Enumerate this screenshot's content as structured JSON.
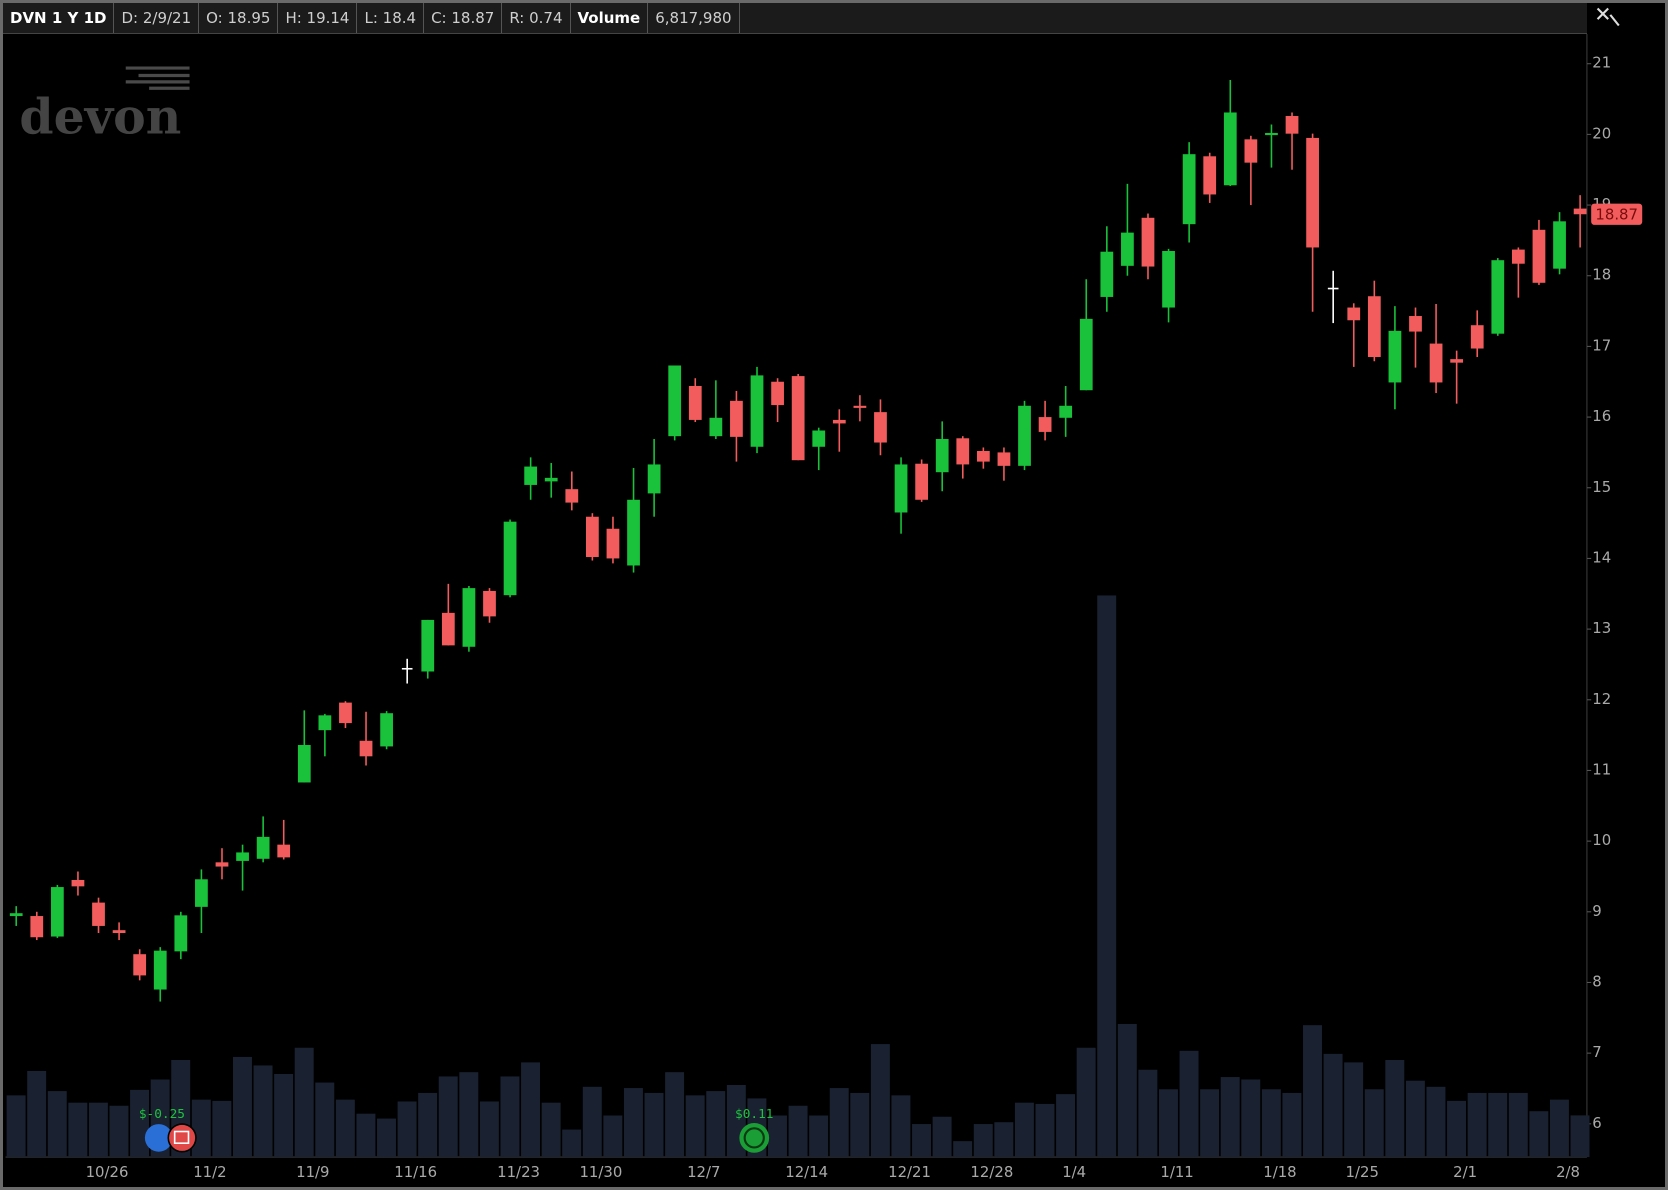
{
  "header": {
    "items": [
      "DVN 1 Y 1D",
      "D: 2/9/21",
      "O: 18.95",
      "H: 19.14",
      "L: 18.4",
      "C: 18.87",
      "R: 0.74",
      "Volume",
      "6,817,980"
    ]
  },
  "logo": "devon",
  "chart_data": {
    "type": "candlestick",
    "categories": [
      null,
      null,
      null,
      null,
      "10/26",
      null,
      null,
      null,
      null,
      "11/2",
      null,
      null,
      null,
      null,
      "11/9",
      null,
      null,
      null,
      null,
      "11/16",
      null,
      null,
      null,
      null,
      "11/23",
      null,
      null,
      null,
      "11/30",
      null,
      null,
      null,
      null,
      "12/7",
      null,
      null,
      null,
      null,
      "12/14",
      null,
      null,
      null,
      null,
      "12/21",
      null,
      null,
      null,
      "12/28",
      null,
      null,
      null,
      "1/4",
      null,
      null,
      null,
      null,
      "1/11",
      null,
      null,
      null,
      null,
      "1/18",
      null,
      null,
      null,
      "1/25",
      null,
      null,
      null,
      null,
      "2/1",
      null,
      null,
      null,
      null,
      "2/8",
      null
    ],
    "open": [
      8.94,
      8.94,
      8.65,
      9.45,
      9.13,
      8.74,
      8.4,
      7.9,
      8.44,
      9.07,
      9.7,
      9.72,
      9.75,
      9.95,
      10.83,
      11.57,
      11.96,
      11.42,
      11.34,
      12.45,
      12.4,
      13.23,
      12.75,
      13.54,
      13.48,
      15.04,
      15.09,
      14.98,
      14.59,
      14.42,
      13.9,
      14.92,
      15.73,
      16.44,
      15.73,
      16.23,
      15.58,
      16.5,
      16.58,
      15.58,
      15.96,
      16.16,
      16.07,
      14.65,
      15.34,
      15.22,
      15.7,
      15.52,
      15.5,
      15.31,
      16.0,
      15.99,
      16.38,
      17.7,
      18.14,
      18.82,
      17.55,
      18.73,
      19.69,
      19.28,
      19.93,
      19.99,
      20.26,
      19.95,
      17.83,
      17.55,
      17.71,
      16.49,
      17.43,
      17.04,
      16.82,
      17.3,
      17.18,
      18.37,
      18.65,
      18.1,
      18.95
    ],
    "high": [
      9.08,
      9.0,
      9.38,
      9.57,
      9.2,
      8.85,
      8.47,
      8.5,
      9.0,
      9.6,
      9.9,
      9.95,
      10.35,
      10.3,
      11.85,
      11.8,
      11.98,
      11.83,
      11.84,
      12.58,
      13.13,
      13.64,
      13.61,
      13.58,
      14.55,
      15.43,
      15.35,
      15.23,
      14.64,
      14.59,
      15.28,
      15.69,
      16.73,
      16.55,
      16.52,
      16.37,
      16.71,
      16.55,
      16.61,
      15.85,
      16.11,
      16.31,
      16.25,
      15.43,
      15.4,
      15.94,
      15.73,
      15.57,
      15.57,
      16.23,
      16.23,
      16.44,
      17.95,
      18.7,
      19.3,
      18.88,
      18.38,
      19.89,
      19.74,
      20.77,
      19.98,
      20.14,
      20.31,
      20.01,
      18.07,
      17.61,
      17.93,
      17.57,
      17.55,
      17.6,
      16.94,
      17.51,
      18.25,
      18.4,
      18.79,
      18.9,
      19.14
    ],
    "low": [
      8.8,
      8.6,
      8.63,
      9.23,
      8.7,
      8.6,
      8.03,
      7.73,
      8.33,
      8.7,
      9.46,
      9.3,
      9.7,
      9.74,
      10.83,
      11.2,
      11.6,
      11.07,
      11.3,
      12.23,
      12.3,
      12.77,
      12.68,
      13.09,
      13.45,
      14.83,
      14.86,
      14.68,
      13.97,
      13.93,
      13.8,
      14.59,
      15.67,
      15.93,
      15.69,
      15.37,
      15.49,
      15.93,
      15.39,
      15.25,
      15.51,
      15.94,
      15.46,
      14.35,
      14.8,
      14.95,
      15.13,
      15.27,
      15.1,
      15.25,
      15.67,
      15.72,
      16.38,
      17.49,
      18.0,
      17.95,
      17.34,
      18.47,
      19.03,
      19.27,
      19.0,
      19.53,
      19.5,
      17.49,
      17.33,
      16.71,
      16.79,
      16.11,
      16.7,
      16.34,
      16.19,
      16.85,
      17.15,
      17.69,
      17.87,
      18.02,
      18.4
    ],
    "close": [
      8.98,
      8.64,
      9.35,
      9.36,
      8.8,
      8.7,
      8.1,
      8.45,
      8.95,
      9.46,
      9.64,
      9.84,
      10.06,
      9.77,
      11.36,
      11.78,
      11.67,
      11.2,
      11.81,
      12.45,
      13.13,
      12.77,
      13.58,
      13.18,
      14.52,
      15.3,
      15.14,
      14.79,
      14.02,
      14.0,
      14.83,
      15.33,
      16.73,
      15.96,
      15.99,
      15.72,
      16.59,
      16.17,
      15.39,
      15.81,
      15.91,
      16.13,
      15.64,
      15.33,
      14.83,
      15.69,
      15.33,
      15.37,
      15.31,
      16.16,
      15.79,
      16.16,
      17.39,
      18.34,
      18.61,
      18.13,
      18.35,
      19.72,
      19.15,
      20.31,
      19.6,
      20.02,
      20.01,
      18.4,
      17.83,
      17.37,
      16.85,
      17.22,
      17.21,
      16.49,
      16.77,
      16.97,
      18.22,
      18.17,
      17.9,
      18.77,
      18.87
    ],
    "volume": [
      10100000,
      14100000,
      10800000,
      8900000,
      8900000,
      8400000,
      11000000,
      12700000,
      15900000,
      9400000,
      9200000,
      16400000,
      15000000,
      13600000,
      17900000,
      12200000,
      9400000,
      7100000,
      6300000,
      9100000,
      10500000,
      13200000,
      13900000,
      9100000,
      13200000,
      15500000,
      8900000,
      4500000,
      11500000,
      6800000,
      11300000,
      10500000,
      13900000,
      10100000,
      10800000,
      11800000,
      9600000,
      6800000,
      8400000,
      6800000,
      11300000,
      10500000,
      18500000,
      10100000,
      5400000,
      6600000,
      2600000,
      5400000,
      5700000,
      8900000,
      8700000,
      10300000,
      17900000,
      92000000,
      21800000,
      14300000,
      11100000,
      17400000,
      11100000,
      13100000,
      12700000,
      11100000,
      10500000,
      21600000,
      16900000,
      15500000,
      11100000,
      15900000,
      12500000,
      11500000,
      9200000,
      10500000,
      10500000,
      10500000,
      7500000,
      9400000,
      6817980
    ],
    "ylim": [
      5.53,
      21.42
    ],
    "yticks": [
      6,
      7,
      8,
      9,
      10,
      11,
      12,
      13,
      14,
      15,
      16,
      17,
      18,
      19,
      20,
      21
    ],
    "volume_lim": [
      0,
      100000000
    ],
    "up_color": "#19c23a",
    "down_color": "#f25c5c",
    "unchanged_color": "#ffffff",
    "volume_color": "#1a2232",
    "last_price_color": "#f25c5c",
    "annotations": [
      "$-0.25",
      "$0.11"
    ]
  }
}
